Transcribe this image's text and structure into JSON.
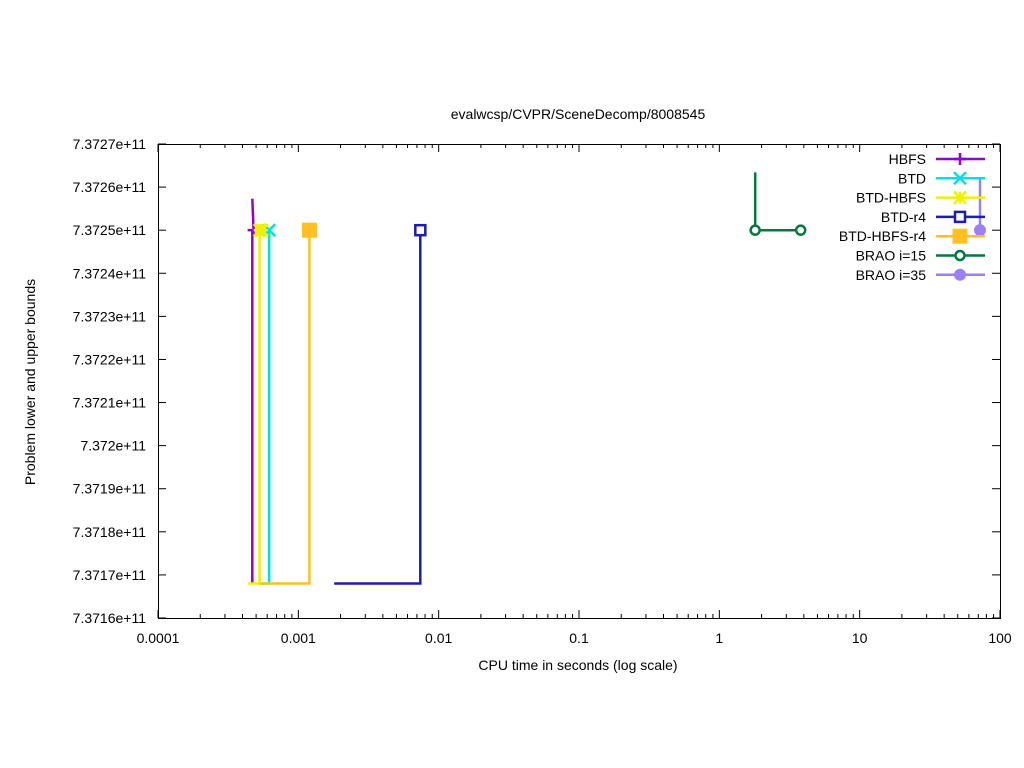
{
  "chart_data": {
    "type": "line",
    "title": "evalwcsp/CVPR/SceneDecomp/8008545",
    "xlabel": "CPU time in seconds (log scale)",
    "ylabel": "Problem lower and upper bounds",
    "x_scale": "log",
    "xlim": [
      0.0001,
      100
    ],
    "ylim": [
      737160000000,
      737270000000
    ],
    "x_ticks": [
      {
        "value": 0.0001,
        "label": "0.0001"
      },
      {
        "value": 0.001,
        "label": "0.001"
      },
      {
        "value": 0.01,
        "label": "0.01"
      },
      {
        "value": 0.1,
        "label": "0.1"
      },
      {
        "value": 1,
        "label": "1"
      },
      {
        "value": 10,
        "label": "10"
      },
      {
        "value": 100,
        "label": "100"
      }
    ],
    "y_ticks": [
      {
        "value": 737160000000,
        "label": "7.3716e+11"
      },
      {
        "value": 737170000000,
        "label": "7.3717e+11"
      },
      {
        "value": 737180000000,
        "label": "7.3718e+11"
      },
      {
        "value": 737190000000,
        "label": "7.3719e+11"
      },
      {
        "value": 737200000000,
        "label": "7.372e+11"
      },
      {
        "value": 737210000000,
        "label": "7.3721e+11"
      },
      {
        "value": 737220000000,
        "label": "7.3722e+11"
      },
      {
        "value": 737230000000,
        "label": "7.3723e+11"
      },
      {
        "value": 737240000000,
        "label": "7.3724e+11"
      },
      {
        "value": 737250000000,
        "label": "7.3725e+11"
      },
      {
        "value": 737260000000,
        "label": "7.3726e+11"
      },
      {
        "value": 737270000000,
        "label": "7.3727e+11"
      }
    ],
    "grid": false,
    "legend_position": "top-right",
    "series": [
      {
        "name": "HBFS",
        "color": "#9400d3",
        "marker": "plus",
        "lower": [
          [
            0.00047,
            737168000000
          ],
          [
            0.00047,
            737250000000
          ]
        ],
        "upper": [
          [
            0.00047,
            737257300000
          ],
          [
            0.00048,
            737250000000
          ]
        ],
        "markers": [
          [
            0.00048,
            737250000000
          ]
        ]
      },
      {
        "name": "BTD",
        "color": "#00e0e0",
        "marker": "x",
        "lower": [
          [
            0.00053,
            737168000000
          ],
          [
            0.00062,
            737168000000
          ],
          [
            0.00062,
            737250000000
          ]
        ],
        "upper": [],
        "markers": [
          [
            0.00062,
            737250000000
          ]
        ]
      },
      {
        "name": "BTD-HBFS",
        "color": "#f0f000",
        "marker": "asterisk",
        "lower": [
          [
            0.00044,
            737168000000
          ],
          [
            0.00053,
            737168000000
          ],
          [
            0.00053,
            737250000000
          ]
        ],
        "upper": [],
        "markers": [
          [
            0.00053,
            737250000000
          ],
          [
            0.00055,
            737250000000
          ]
        ]
      },
      {
        "name": "BTD-r4",
        "color": "#1c1cb0",
        "marker": "square-open",
        "lower": [
          [
            0.0018,
            737168000000
          ],
          [
            0.0074,
            737168000000
          ],
          [
            0.0074,
            737250000000
          ]
        ],
        "upper": [],
        "markers": [
          [
            0.0074,
            737250000000
          ]
        ]
      },
      {
        "name": "BTD-HBFS-r4",
        "color": "#ffc020",
        "marker": "square-filled",
        "lower": [
          [
            0.00053,
            737168000000
          ],
          [
            0.0012,
            737168000000
          ],
          [
            0.0012,
            737250000000
          ]
        ],
        "upper": [],
        "markers": [
          [
            0.0012,
            737250000000
          ]
        ]
      },
      {
        "name": "BRAO i=15",
        "color": "#007b3c",
        "marker": "circle-open",
        "lower": [
          [
            1.8,
            737250000000
          ],
          [
            3.8,
            737250000000
          ]
        ],
        "upper": [
          [
            1.8,
            737263400000
          ],
          [
            1.8,
            737250000000
          ]
        ],
        "markers": [
          [
            1.8,
            737250000000
          ],
          [
            3.8,
            737250000000
          ]
        ]
      },
      {
        "name": "BRAO i=35",
        "color": "#9a80f0",
        "marker": "circle-filled",
        "lower": [
          [
            72,
            737250000000
          ]
        ],
        "upper": [
          [
            72,
            737262000000
          ],
          [
            72,
            737250000000
          ]
        ],
        "markers": [
          [
            72,
            737250000000
          ]
        ]
      }
    ]
  }
}
